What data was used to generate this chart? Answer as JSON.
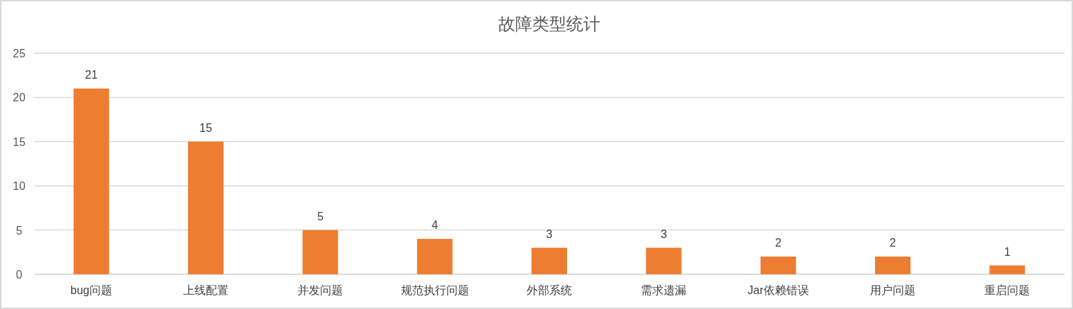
{
  "chart_data": {
    "type": "bar",
    "title": "故障类型统计",
    "categories": [
      "bug问题",
      "上线配置",
      "并发问题",
      "规范执行问题",
      "外部系统",
      "需求遗漏",
      "Jar依赖错误",
      "用户问题",
      "重启问题"
    ],
    "values": [
      21,
      15,
      5,
      4,
      3,
      3,
      2,
      2,
      1
    ],
    "color": "#ed7d31",
    "ylim": [
      0,
      25
    ],
    "yticks": [
      0,
      5,
      10,
      15,
      20,
      25
    ],
    "grid": "y",
    "data_labels": true
  }
}
